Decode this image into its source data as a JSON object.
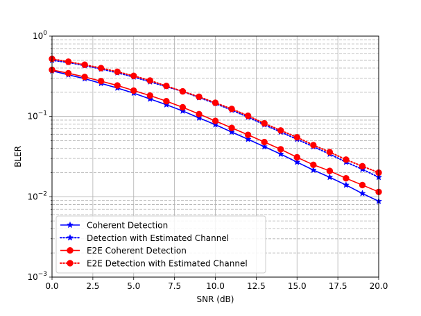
{
  "chart_data": {
    "type": "line",
    "xlabel": "SNR (dB)",
    "ylabel": "BLER",
    "xscale": "linear",
    "yscale": "log",
    "xlim": [
      0,
      20
    ],
    "ylim": [
      0.001,
      1
    ],
    "grid": "major and minor on both axes",
    "legend_position": "lower-left",
    "x_ticks": [
      0,
      2.5,
      5,
      7.5,
      10,
      12.5,
      15,
      17.5,
      20
    ],
    "x_tick_labels": [
      "0.0",
      "2.5",
      "5.0",
      "7.5",
      "10.0",
      "12.5",
      "15.0",
      "17.5",
      "20.0"
    ],
    "y_ticks": [
      0.001,
      0.01,
      0.1,
      1
    ],
    "y_tick_labels": [
      {
        "base": "10",
        "exp": "−3"
      },
      {
        "base": "10",
        "exp": "−2"
      },
      {
        "base": "10",
        "exp": "−1"
      },
      {
        "base": "10",
        "exp": "0"
      }
    ],
    "x": [
      0,
      1,
      2,
      3,
      4,
      5,
      6,
      7,
      8,
      9,
      10,
      11,
      12,
      13,
      14,
      15,
      16,
      17,
      18,
      19,
      20
    ],
    "series": [
      {
        "name": "Coherent Detection",
        "color": "#0000ff",
        "line": "solid",
        "marker": "star",
        "values": [
          0.37,
          0.33,
          0.295,
          0.258,
          0.226,
          0.195,
          0.165,
          0.14,
          0.117,
          0.096,
          0.079,
          0.064,
          0.052,
          0.042,
          0.034,
          0.027,
          0.0215,
          0.0175,
          0.014,
          0.011,
          0.0088
        ]
      },
      {
        "name": "Detection with Estimated Channel",
        "color": "#0000ff",
        "line": "dotted",
        "marker": "star",
        "values": [
          0.5,
          0.47,
          0.43,
          0.39,
          0.35,
          0.31,
          0.27,
          0.235,
          0.205,
          0.172,
          0.145,
          0.12,
          0.098,
          0.079,
          0.064,
          0.052,
          0.042,
          0.034,
          0.027,
          0.022,
          0.0175
        ]
      },
      {
        "name": "E2E Coherent Detection",
        "color": "#ff0000",
        "line": "solid",
        "marker": "circle",
        "values": [
          0.38,
          0.345,
          0.31,
          0.275,
          0.243,
          0.21,
          0.182,
          0.155,
          0.13,
          0.107,
          0.088,
          0.072,
          0.059,
          0.048,
          0.039,
          0.031,
          0.025,
          0.021,
          0.017,
          0.014,
          0.0115
        ]
      },
      {
        "name": "E2E Detection with Estimated Channel",
        "color": "#ff0000",
        "line": "dotted",
        "marker": "circle",
        "values": [
          0.52,
          0.48,
          0.44,
          0.4,
          0.36,
          0.32,
          0.28,
          0.24,
          0.205,
          0.176,
          0.148,
          0.124,
          0.102,
          0.082,
          0.067,
          0.055,
          0.044,
          0.036,
          0.029,
          0.024,
          0.02
        ]
      }
    ]
  }
}
